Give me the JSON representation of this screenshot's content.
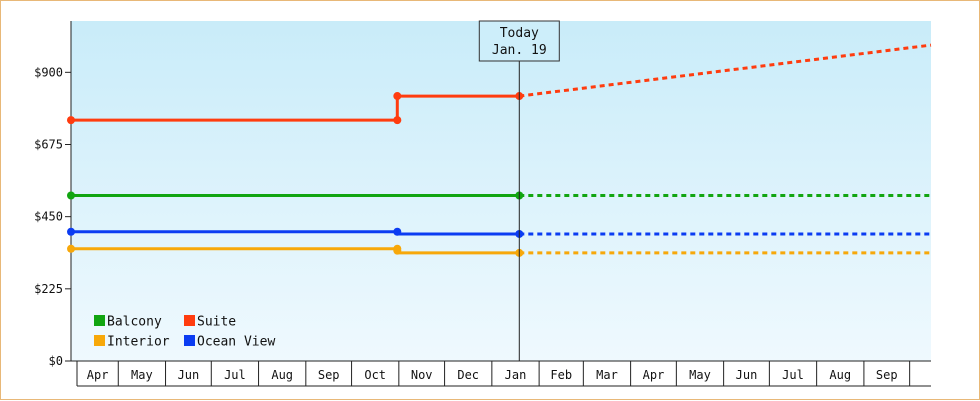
{
  "chart_data": {
    "type": "line",
    "title": "",
    "xlabel": "",
    "ylabel": "",
    "y_tick_labels": [
      "$0",
      "$225",
      "$450",
      "$675",
      "$900"
    ],
    "y_ticks": [
      0,
      225,
      450,
      675,
      900
    ],
    "ylim": [
      0,
      1060
    ],
    "x_months": [
      "Apr",
      "May",
      "Jun",
      "Jul",
      "Aug",
      "Sep",
      "Oct",
      "Nov",
      "Dec",
      "Jan",
      "Feb",
      "Mar",
      "Apr",
      "May",
      "Jun",
      "Jul",
      "Aug",
      "Sep"
    ],
    "xlim": [
      "2023-03-31",
      "2024-10-15"
    ],
    "today": {
      "line1": "Today",
      "line2": "Jan. 19",
      "date": "2024-01-19"
    },
    "legend": {
      "placement": "bottom-left",
      "entries": [
        {
          "name": "Balcony",
          "color": "#11a511"
        },
        {
          "name": "Suite",
          "color": "#ff3c0f"
        },
        {
          "name": "Interior",
          "color": "#f7a80a"
        },
        {
          "name": "Ocean View",
          "color": "#0b3cf2"
        }
      ]
    },
    "series": [
      {
        "name": "Suite",
        "color": "#ff3c0f",
        "history": [
          [
            "2023-03-31",
            751
          ],
          [
            "2023-10-31",
            751
          ],
          [
            "2023-10-31",
            826
          ],
          [
            "2024-01-19",
            826
          ]
        ],
        "markers": [
          [
            "2023-03-31",
            751
          ],
          [
            "2023-10-31",
            751
          ],
          [
            "2023-10-31",
            826
          ],
          [
            "2024-01-19",
            826
          ]
        ],
        "forecast": [
          [
            "2024-01-19",
            826
          ],
          [
            "2024-10-15",
            985
          ]
        ]
      },
      {
        "name": "Balcony",
        "color": "#11a511",
        "history": [
          [
            "2023-03-31",
            516
          ],
          [
            "2024-01-19",
            516
          ]
        ],
        "markers": [
          [
            "2023-03-31",
            516
          ],
          [
            "2024-01-19",
            516
          ]
        ],
        "forecast": [
          [
            "2024-01-19",
            516
          ],
          [
            "2024-10-15",
            516
          ]
        ]
      },
      {
        "name": "Ocean View",
        "color": "#0b3cf2",
        "history": [
          [
            "2023-03-31",
            403
          ],
          [
            "2023-10-31",
            403
          ],
          [
            "2023-10-31",
            396
          ],
          [
            "2024-01-19",
            396
          ]
        ],
        "markers": [
          [
            "2023-03-31",
            403
          ],
          [
            "2023-10-31",
            403
          ],
          [
            "2024-01-19",
            396
          ]
        ],
        "forecast": [
          [
            "2024-01-19",
            396
          ],
          [
            "2024-10-15",
            396
          ]
        ]
      },
      {
        "name": "Interior",
        "color": "#f7a80a",
        "history": [
          [
            "2023-03-31",
            350
          ],
          [
            "2023-10-31",
            350
          ],
          [
            "2023-10-31",
            337
          ],
          [
            "2024-01-19",
            337
          ]
        ],
        "markers": [
          [
            "2023-03-31",
            350
          ],
          [
            "2023-10-31",
            350
          ],
          [
            "2023-10-31",
            344
          ],
          [
            "2024-01-19",
            337
          ]
        ],
        "forecast": [
          [
            "2024-01-19",
            337
          ],
          [
            "2024-10-15",
            337
          ]
        ]
      }
    ]
  }
}
